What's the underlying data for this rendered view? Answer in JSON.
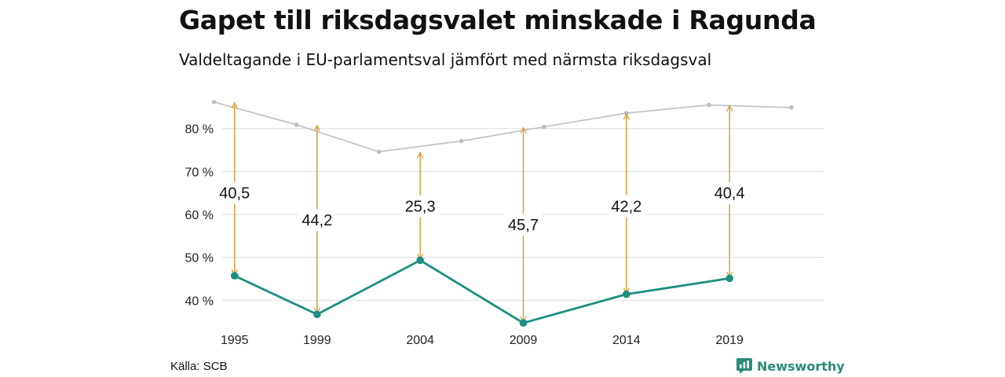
{
  "header": {
    "title": "Gapet till riksdagsvalet minskade i Ragunda",
    "subtitle": "Valdeltagande i EU-parlamentsval jämfört med närmsta riksdagsval"
  },
  "footer": {
    "source": "Källa: SCB",
    "brand": "Newsworthy"
  },
  "colors": {
    "eu": "#1b8f80",
    "riksdag": "#bdbdc4",
    "gap": "#d8a03c",
    "grid": "#dcdcdc"
  },
  "chart_data": {
    "type": "line",
    "title": "Gapet till riksdagsvalet minskade i Ragunda",
    "subtitle": "Valdeltagande i EU-parlamentsval jämfört med närmsta riksdagsval",
    "xlim": [
      1994.4,
      2023.6
    ],
    "ylim": [
      33,
      88
    ],
    "y_ticks": [
      40,
      50,
      60,
      70,
      80
    ],
    "y_tick_labels": [
      "40 %",
      "50 %",
      "60 %",
      "70 %",
      "80 %"
    ],
    "x_tick_labels": [
      "1995",
      "1999",
      "2004",
      "2009",
      "2014",
      "2019"
    ],
    "grid": true,
    "series": [
      {
        "key": "riksdag",
        "x": [
          1994,
          1998,
          2002,
          2006,
          2010,
          2014,
          2018,
          2022
        ],
        "values": [
          86.2,
          80.9,
          74.6,
          77.1,
          80.4,
          83.6,
          85.5,
          84.9
        ]
      },
      {
        "key": "eu",
        "x": [
          1995,
          1999,
          2004,
          2009,
          2014,
          2019
        ],
        "values": [
          45.7,
          36.7,
          49.3,
          34.7,
          41.4,
          45.1
        ]
      }
    ],
    "gaps": [
      {
        "x": 1995,
        "from": 45.7,
        "to": 86.2,
        "label": "40,5",
        "label_y": 65.0
      },
      {
        "x": 1999,
        "from": 36.7,
        "to": 80.9,
        "label": "44,2",
        "label_y": 58.7
      },
      {
        "x": 2004,
        "from": 49.3,
        "to": 74.6,
        "label": "25,3",
        "label_y": 61.9
      },
      {
        "x": 2009,
        "from": 34.7,
        "to": 80.4,
        "label": "45,7",
        "label_y": 57.6
      },
      {
        "x": 2014,
        "from": 41.4,
        "to": 83.6,
        "label": "42,2",
        "label_y": 61.9
      },
      {
        "x": 2019,
        "from": 45.1,
        "to": 85.5,
        "label": "40,4",
        "label_y": 65.0
      }
    ]
  }
}
